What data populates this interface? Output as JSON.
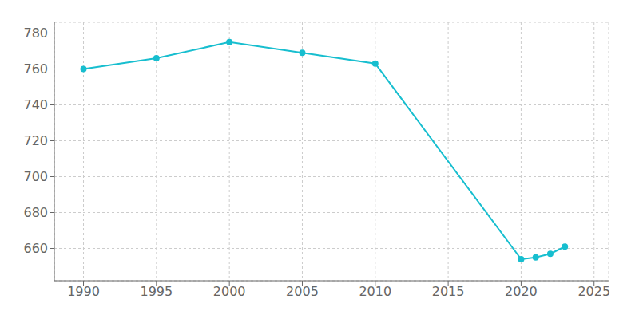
{
  "chart_data": {
    "type": "line",
    "x": [
      1990,
      1995,
      2000,
      2005,
      2010,
      2020,
      2021,
      2022,
      2023
    ],
    "series": [
      {
        "color": "#17becf",
        "marker": "circle",
        "values": [
          760,
          766,
          775,
          769,
          763,
          654,
          655,
          657,
          661
        ]
      }
    ],
    "xlim": [
      1988,
      2026
    ],
    "ylim": [
      642,
      786
    ],
    "xticks": [
      1990,
      1995,
      2000,
      2005,
      2010,
      2015,
      2020,
      2025
    ],
    "yticks": [
      660,
      680,
      700,
      720,
      740,
      760,
      780
    ],
    "grid": true
  }
}
